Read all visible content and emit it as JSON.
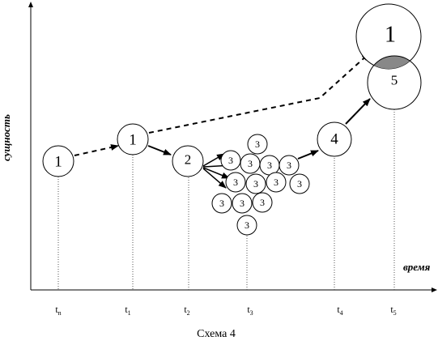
{
  "diagram": {
    "y_axis_label": "сущность",
    "x_axis_label": "время",
    "caption": "Схема 4",
    "ticks": [
      {
        "base": "t",
        "sub": "n"
      },
      {
        "base": "t",
        "sub": "1"
      },
      {
        "base": "t",
        "sub": "2"
      },
      {
        "base": "t",
        "sub": "3"
      },
      {
        "base": "t",
        "sub": "4"
      },
      {
        "base": "t",
        "sub": "5"
      }
    ],
    "nodes": {
      "n1_start": "1",
      "n1_t1": "1",
      "n2": "2",
      "n3": "3",
      "n4": "4",
      "n5": "5",
      "n1_top": "1"
    }
  }
}
